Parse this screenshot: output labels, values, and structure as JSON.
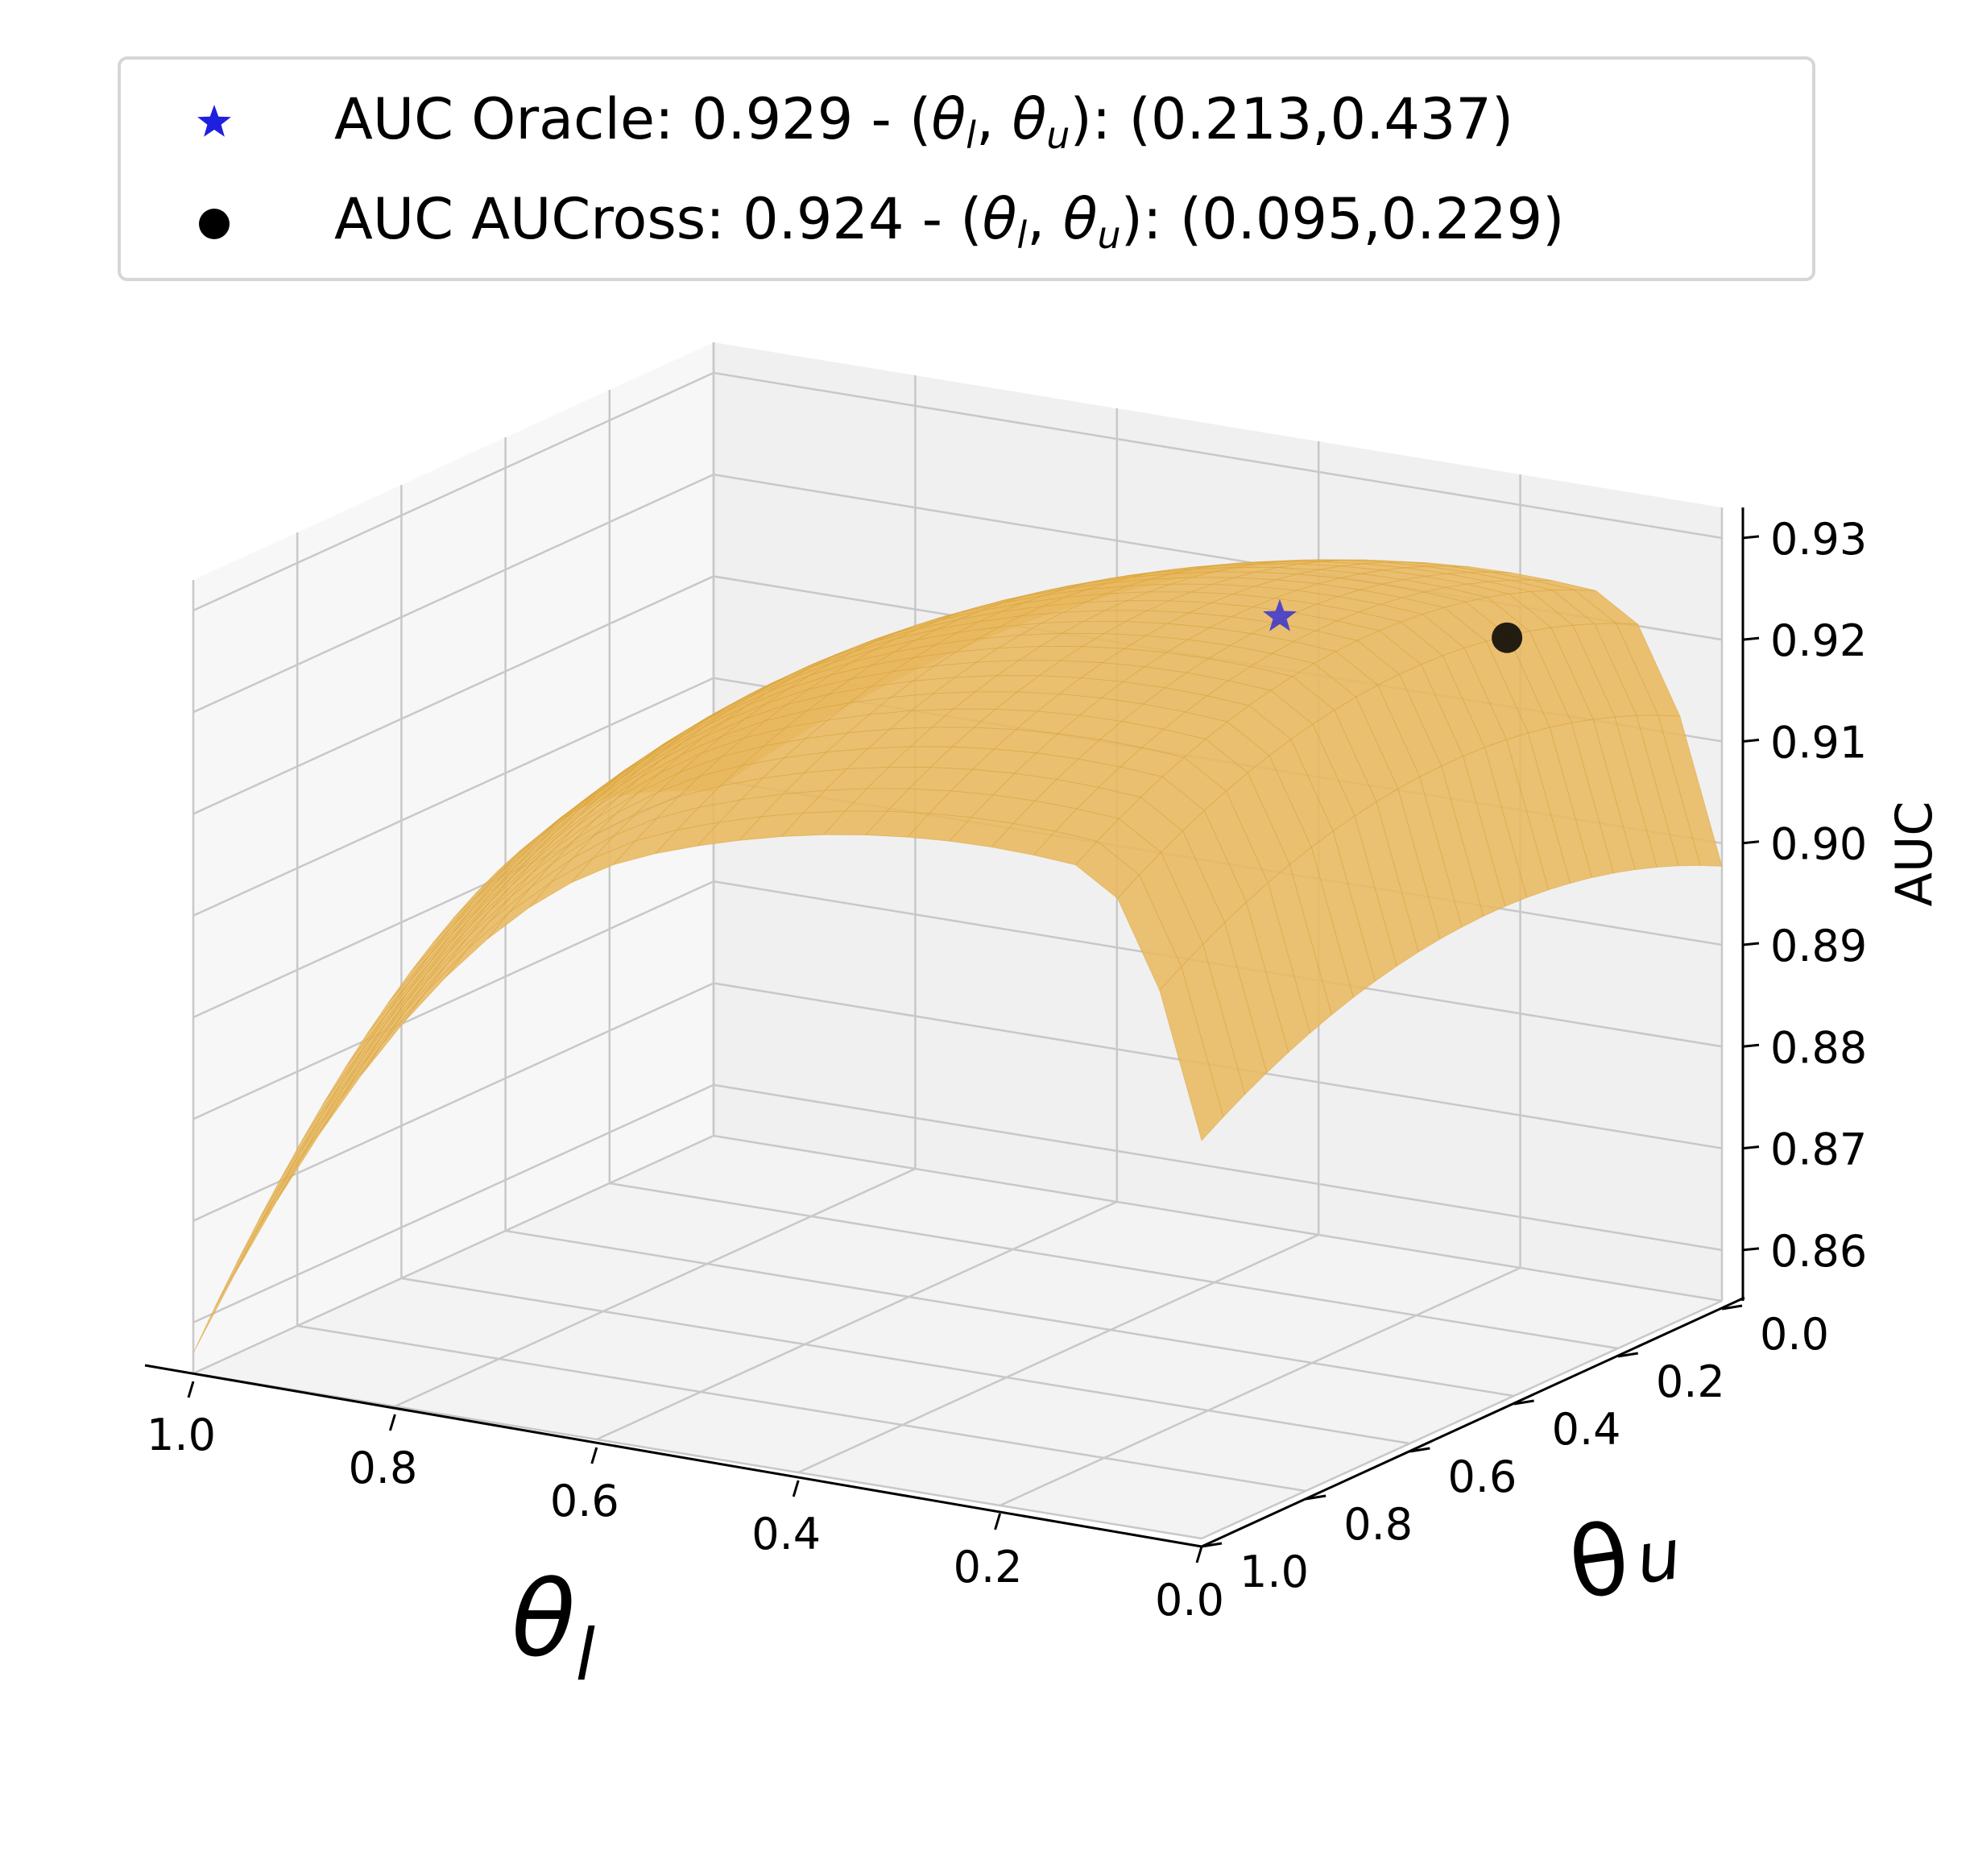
{
  "chart_data": {
    "type": "surface3d",
    "axes": {
      "x": {
        "label": "θl",
        "symbol": "θ",
        "subscript": "l",
        "ticks": [
          "1.0",
          "0.8",
          "0.6",
          "0.4",
          "0.2",
          "0.0"
        ],
        "range": [
          0,
          1
        ]
      },
      "y": {
        "label": "θu",
        "symbol": "θ",
        "subscript": "u",
        "ticks": [
          "0.0",
          "0.2",
          "0.4",
          "0.6",
          "0.8",
          "1.0"
        ],
        "range": [
          0,
          1
        ]
      },
      "z": {
        "label": "AUC",
        "ticks": [
          "0.86",
          "0.87",
          "0.88",
          "0.89",
          "0.90",
          "0.91",
          "0.92",
          "0.93"
        ],
        "range": [
          0.855,
          0.933
        ]
      }
    },
    "legend": [
      {
        "marker": "star",
        "color": "#1f1fe0",
        "text": "AUC Oracle: 0.929 - (θl, θu): (0.213,0.437)",
        "parts": {
          "prefix": "AUC Oracle: 0.929 - (",
          "suffix": "): (0.213,0.437)"
        }
      },
      {
        "marker": "circle",
        "color": "#000000",
        "text": "AUC AUCross: 0.924 - (θl, θu): (0.095,0.229)",
        "parts": {
          "prefix": "AUC AUCross: 0.924 - (",
          "suffix": "): (0.095,0.229)"
        }
      }
    ],
    "points": [
      {
        "name": "AUC Oracle",
        "theta_l": 0.213,
        "theta_u": 0.437,
        "auc": 0.929,
        "marker": "star",
        "color": "#1f1fe0"
      },
      {
        "name": "AUC AUCross",
        "theta_l": 0.095,
        "theta_u": 0.229,
        "auc": 0.924,
        "marker": "circle",
        "color": "#000000"
      }
    ],
    "surface": {
      "color": "#e8b860",
      "edge_color": "#c8900a",
      "mesh_color": "#d8a030",
      "wall_color": "#f7f7f7",
      "grid_color": "#c8c8c8"
    },
    "grid": true,
    "legend_position": "top"
  }
}
